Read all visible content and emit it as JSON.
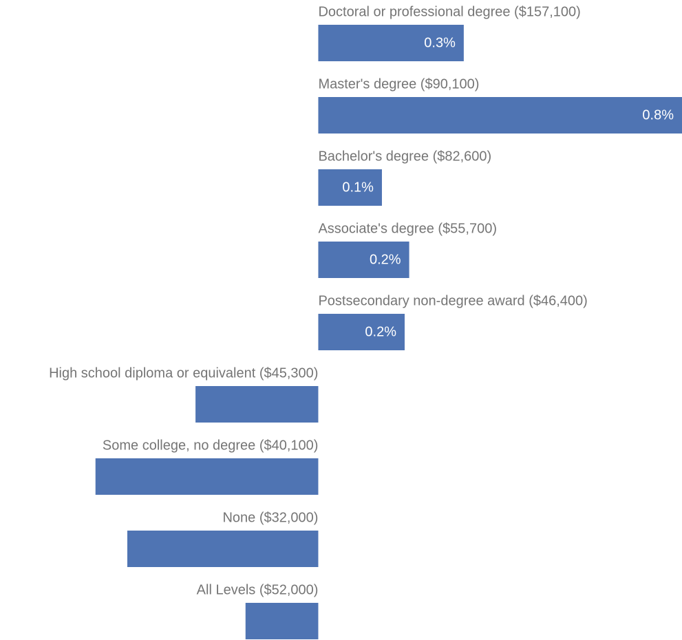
{
  "chart_data": {
    "type": "bar",
    "orientation": "horizontal",
    "categories": [
      "Doctoral or professional degree ($157,100)",
      "Master's degree ($90,100)",
      "Bachelor's degree ($82,600)",
      "Associate's degree ($55,700)",
      "Postsecondary non-degree award ($46,400)",
      "High school diploma or equivalent ($45,300)",
      "Some college, no degree ($40,100)",
      "None ($32,000)",
      "All Levels ($52,000)"
    ],
    "values": [
      0.32,
      0.8,
      0.14,
      0.2,
      0.19,
      -0.27,
      -0.49,
      -0.42,
      -0.16
    ],
    "value_labels": [
      "0.3%",
      "0.8%",
      "0.1%",
      "0.2%",
      "0.2%",
      null,
      null,
      null,
      null
    ],
    "color": "#4f74b3",
    "xlim": [
      -0.7,
      0.8
    ]
  }
}
